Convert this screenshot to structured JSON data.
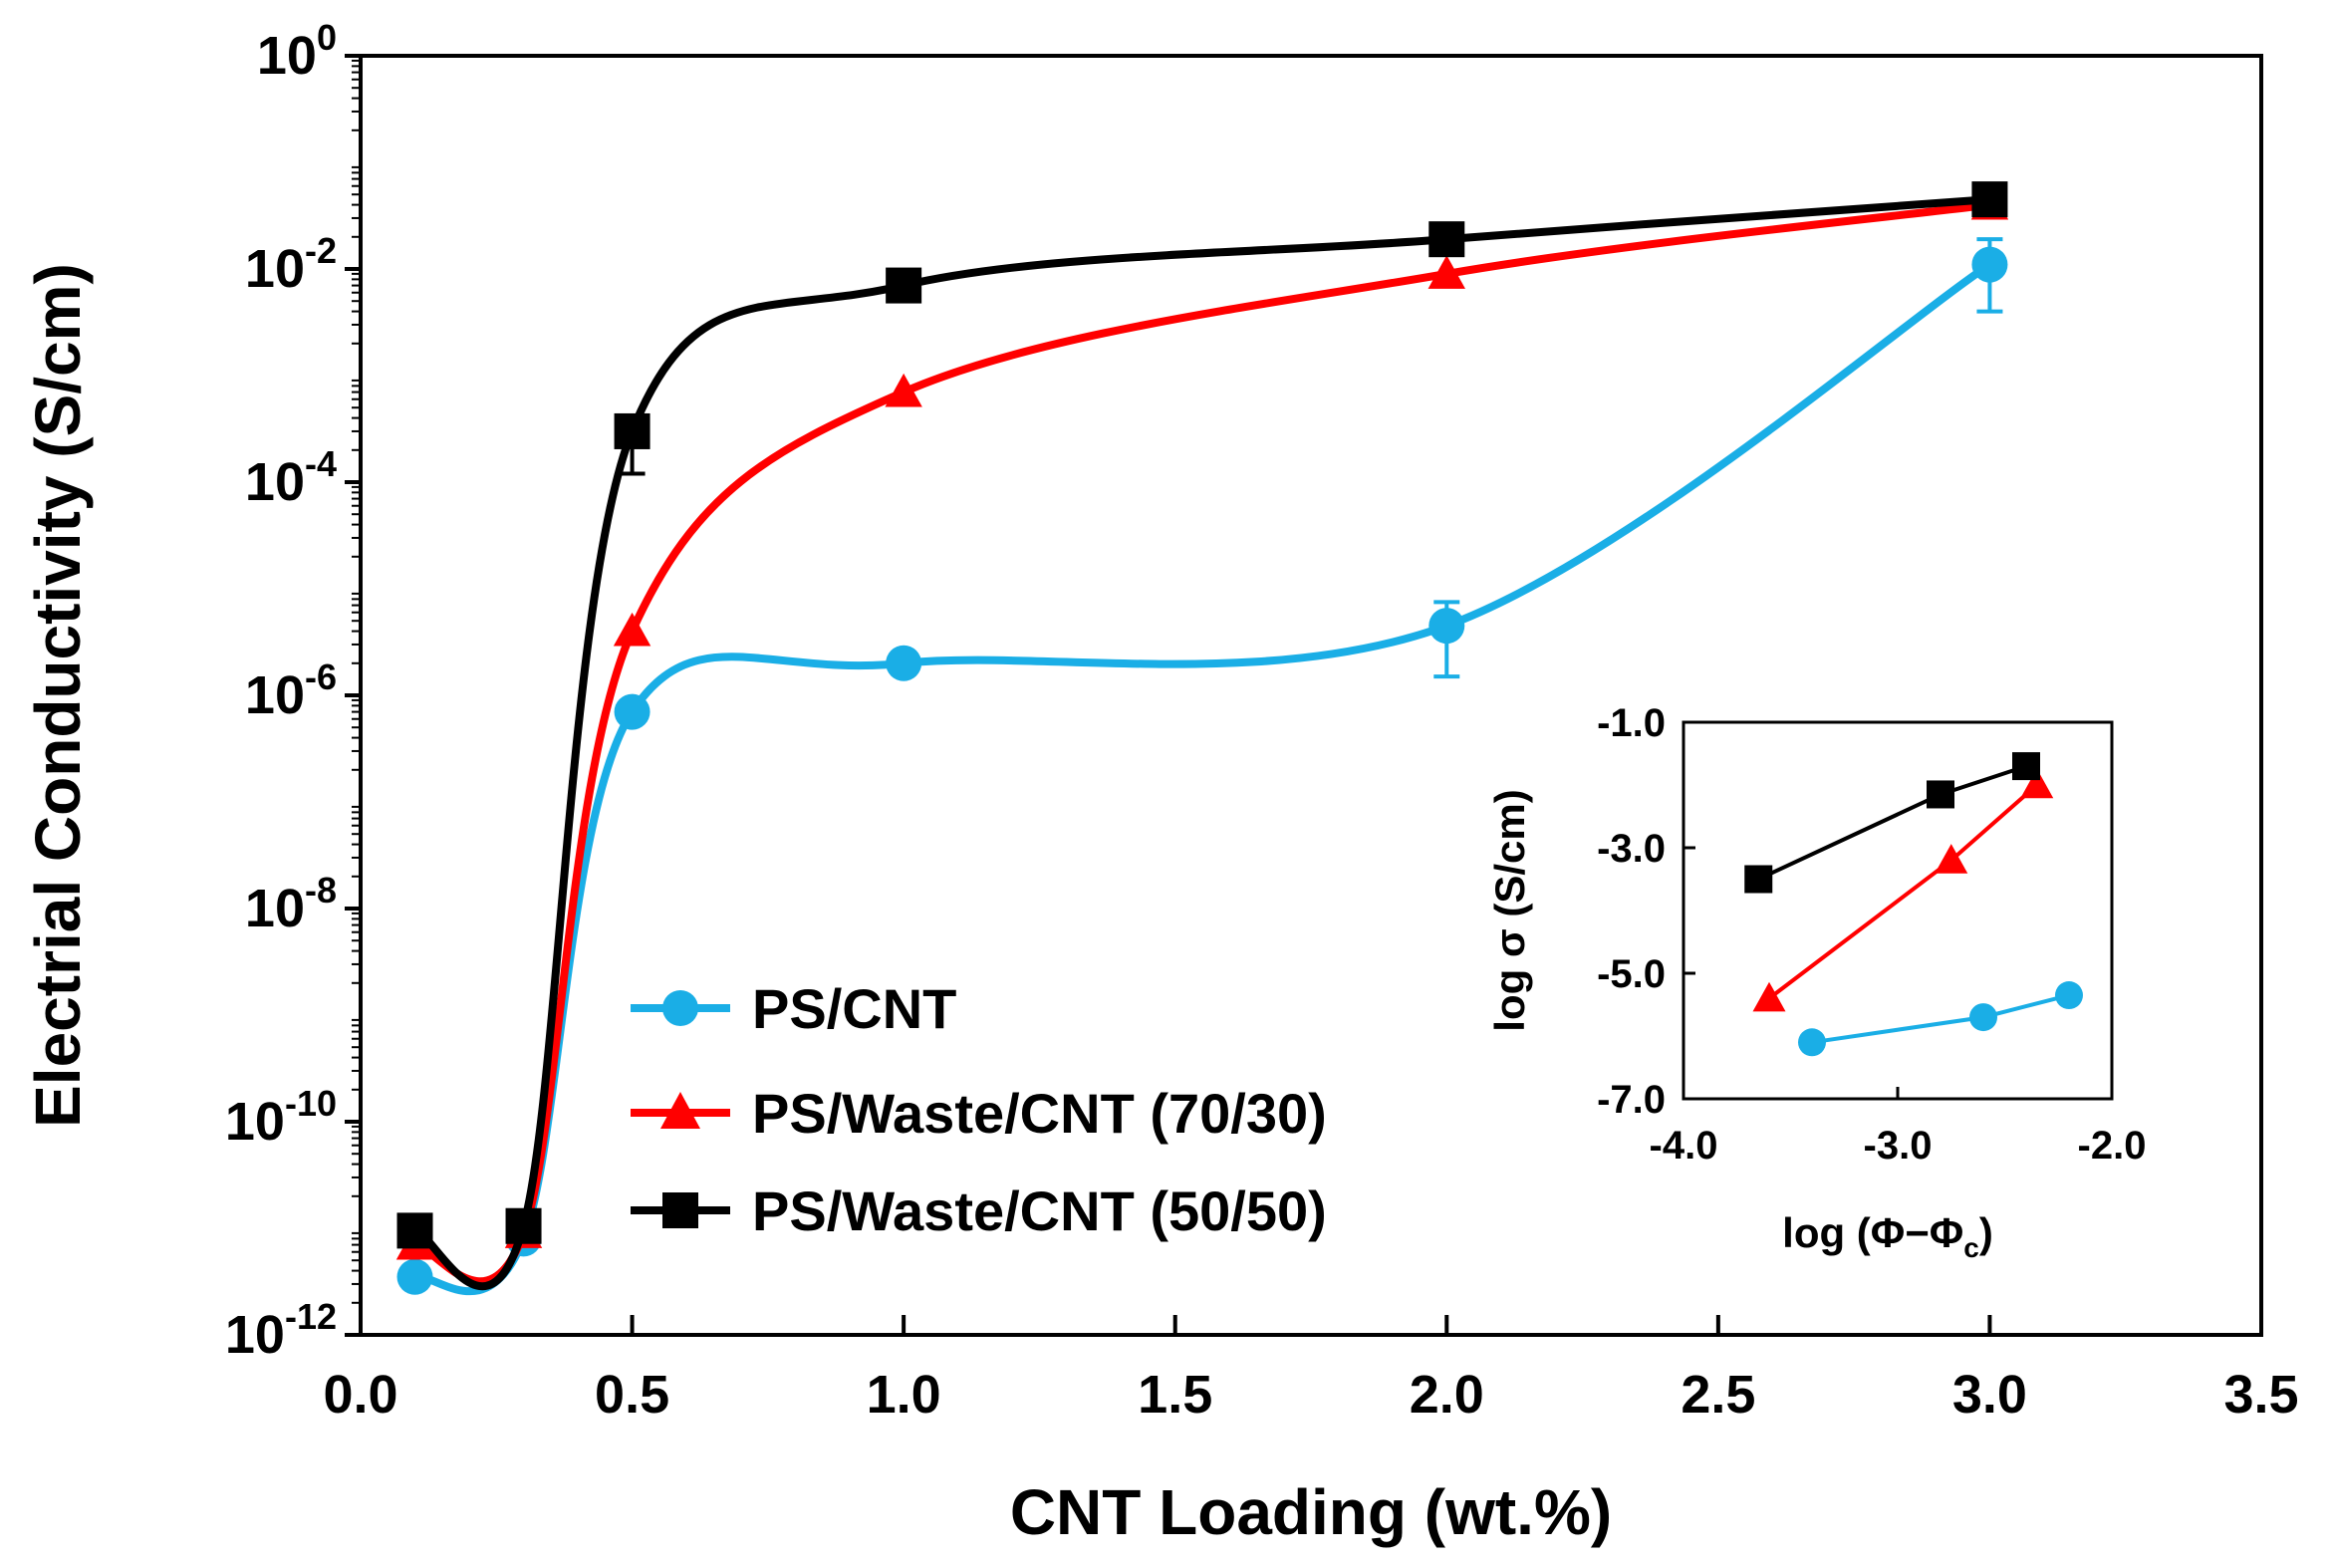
{
  "chart_data": [
    {
      "type": "line",
      "xlabel": "CNT Loading (wt.%)",
      "ylabel": "Electrial Conductivity (S/cm)",
      "xlim": [
        0.0,
        3.5
      ],
      "ylim": [
        1e-12,
        1
      ],
      "yscale": "log",
      "grid": false,
      "legend_position": "lower-left",
      "x_ticks": [
        "0.0",
        "0.5",
        "1.0",
        "1.5",
        "2.0",
        "2.5",
        "3.0",
        "3.5"
      ],
      "y_ticks": [
        {
          "base": "10",
          "exp": "0"
        },
        {
          "base": "10",
          "exp": "-2"
        },
        {
          "base": "10",
          "exp": "-4"
        },
        {
          "base": "10",
          "exp": "-6"
        },
        {
          "base": "10",
          "exp": "-8"
        },
        {
          "base": "10",
          "exp": "-10"
        },
        {
          "base": "10",
          "exp": "-12"
        }
      ],
      "series": [
        {
          "name": "PS/CNT",
          "color": "#1aaee6",
          "marker": "circle",
          "x": [
            0.1,
            0.3,
            0.5,
            1.0,
            2.0,
            3.0
          ],
          "y": [
            3.5e-12,
            8e-12,
            7e-07,
            2e-06,
            4.5e-06,
            0.011
          ],
          "error_low": [
            null,
            null,
            null,
            null,
            1.5e-06,
            0.004
          ],
          "error_high": [
            null,
            null,
            null,
            null,
            7.5e-06,
            0.019
          ]
        },
        {
          "name": "PS/Waste/CNT (70/30)",
          "color": "#ff0000",
          "marker": "triangle",
          "x": [
            0.1,
            0.3,
            0.5,
            1.0,
            2.0,
            3.0
          ],
          "y": [
            7e-12,
            9e-12,
            4e-06,
            0.0007,
            0.009,
            0.04
          ],
          "error_low": [
            null,
            null,
            null,
            null,
            null,
            null
          ],
          "error_high": [
            null,
            null,
            null,
            null,
            null,
            null
          ]
        },
        {
          "name": "PS/Waste/CNT (50/50)",
          "color": "#000000",
          "marker": "square",
          "x": [
            0.1,
            0.3,
            0.5,
            1.0,
            2.0,
            3.0
          ],
          "y": [
            9.5e-12,
            1.05e-11,
            0.0003,
            0.007,
            0.019,
            0.045
          ],
          "error_low": [
            null,
            null,
            0.00012,
            null,
            null,
            null
          ],
          "error_high": [
            null,
            null,
            null,
            null,
            null,
            null
          ]
        }
      ]
    },
    {
      "type": "line",
      "role": "inset",
      "xlabel": "log (Φ−Φc)",
      "xlabel_main": "log (Φ−Φ",
      "xlabel_sub": "c",
      "xlabel_end": ")",
      "ylabel": "log σ (S/cm)",
      "xlim": [
        -4.0,
        -2.0
      ],
      "ylim": [
        -7.0,
        -1.0
      ],
      "x_ticks": [
        "-4.0",
        "-3.0",
        "-2.0"
      ],
      "y_ticks": [
        "-1.0",
        "-3.0",
        "-5.0",
        "-7.0"
      ],
      "series": [
        {
          "color": "#1aaee6",
          "marker": "circle",
          "x": [
            -3.4,
            -2.6,
            -2.2
          ],
          "y": [
            -6.1,
            -5.7,
            -5.35
          ]
        },
        {
          "color": "#ff0000",
          "marker": "triangle",
          "x": [
            -3.6,
            -2.75,
            -2.35
          ],
          "y": [
            -5.4,
            -3.2,
            -2.0
          ]
        },
        {
          "color": "#000000",
          "marker": "square",
          "x": [
            -3.65,
            -2.8,
            -2.4
          ],
          "y": [
            -3.5,
            -2.15,
            -1.7
          ]
        }
      ]
    }
  ]
}
